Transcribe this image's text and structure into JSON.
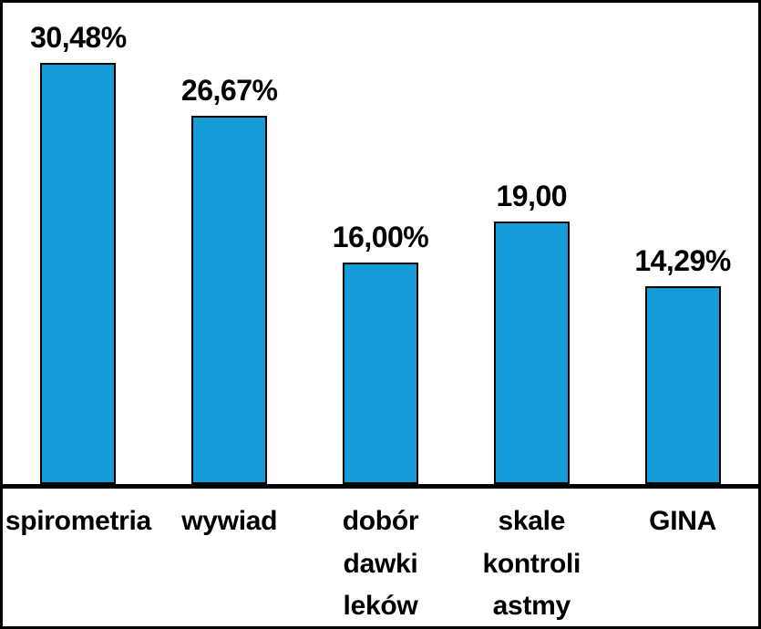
{
  "chart_data": {
    "type": "bar",
    "categories": [
      "spirometria",
      "wywiad",
      "dobór\ndawki\nleków",
      "skale\nkontroli\nastmy",
      "GINA"
    ],
    "values": [
      30.48,
      26.67,
      16.0,
      19.0,
      14.29
    ],
    "value_labels": [
      "30,48%",
      "26,67%",
      "16,00%",
      "19,00",
      "14,29%"
    ],
    "title": "",
    "xlabel": "",
    "ylabel": "",
    "ylim": [
      0,
      32
    ],
    "grid": false,
    "legend": "none",
    "bar_color": "#159bd8",
    "bar_border_color": "#000000",
    "axis_color": "#000000",
    "background_color": "#ffffff"
  }
}
